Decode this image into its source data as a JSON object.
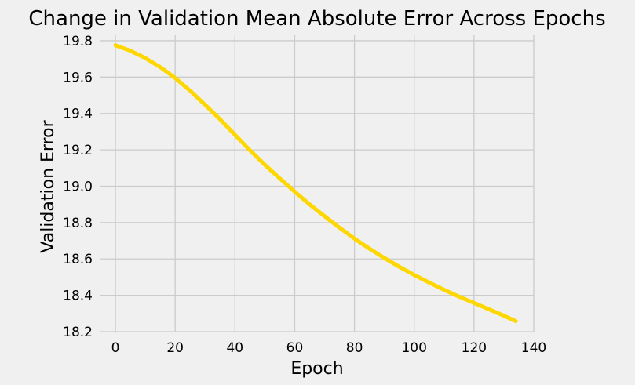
{
  "chart_data": {
    "type": "line",
    "title": "Change in Validation Mean Absolute Error Across Epochs",
    "xlabel": "Epoch",
    "ylabel": "Validation Error",
    "xlim": [
      -5,
      140
    ],
    "ylim": [
      18.2,
      19.83
    ],
    "xticks": [
      0,
      20,
      40,
      60,
      80,
      100,
      120,
      140
    ],
    "yticks": [
      18.2,
      18.4,
      18.6,
      18.8,
      19.0,
      19.2,
      19.4,
      19.6,
      19.8
    ],
    "grid": true,
    "series": [
      {
        "color": "#ffd700",
        "x": [
          0,
          5,
          10,
          15,
          20,
          25,
          30,
          35,
          40,
          45,
          50,
          55,
          60,
          65,
          70,
          75,
          80,
          85,
          90,
          95,
          100,
          105,
          110,
          115,
          120,
          125,
          130,
          134
        ],
        "y": [
          19.775,
          19.745,
          19.705,
          19.655,
          19.595,
          19.525,
          19.448,
          19.368,
          19.283,
          19.198,
          19.118,
          19.043,
          18.97,
          18.9,
          18.835,
          18.772,
          18.712,
          18.657,
          18.605,
          18.557,
          18.512,
          18.47,
          18.43,
          18.393,
          18.358,
          18.323,
          18.288,
          18.258
        ]
      }
    ]
  }
}
